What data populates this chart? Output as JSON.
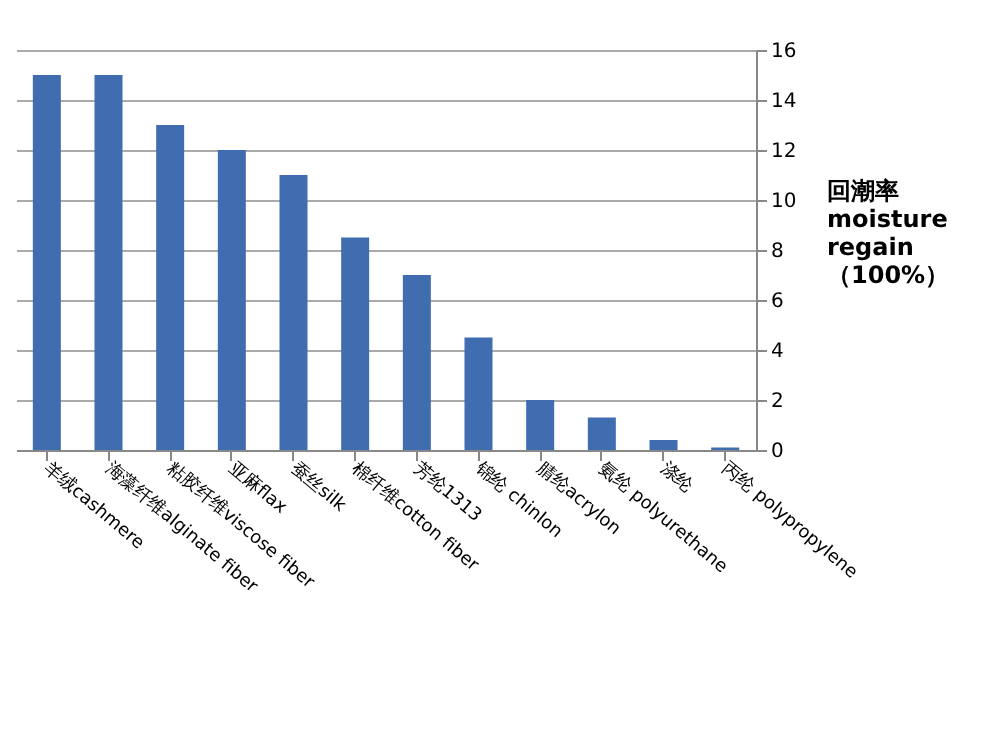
{
  "chart_data": {
    "type": "bar",
    "ylabel": "回潮率\nmoisture\nregain\n（100%）",
    "categories": [
      "羊绒cashmere",
      "海藻纤维alginate fiber",
      "粘胶纤维viscose fiber",
      "亚麻flax",
      "蚕丝silk",
      "棉纤维cotton fiber",
      "芳纶1313",
      "锦纶 chinlon",
      "腈纶acrylon",
      "氨纶 polyurethane",
      "涤纶",
      "丙纶 polypropylene"
    ],
    "values": [
      15,
      15,
      13,
      12,
      11,
      8.5,
      7,
      4.5,
      2,
      1.3,
      0.4,
      0.1
    ],
    "color": "#3f6db0",
    "ylim": [
      0,
      16
    ],
    "yticks": [
      0,
      2,
      4,
      6,
      8,
      10,
      12,
      14,
      16
    ],
    "grid": "y"
  }
}
